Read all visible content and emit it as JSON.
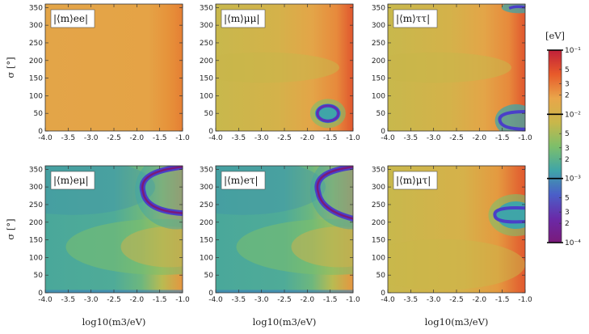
{
  "chart_data": {
    "type": "heatmap",
    "xlabel": "log10(m3/eV)",
    "ylabel": "σ [°]",
    "xlim": [
      -4.0,
      -1.0
    ],
    "ylim": [
      0,
      360
    ],
    "x_ticks": [
      "-4.0",
      "-3.5",
      "-3.0",
      "-2.5",
      "-2.0",
      "-1.5",
      "-1.0"
    ],
    "y_ticks": [
      "0",
      "50",
      "100",
      "150",
      "200",
      "250",
      "300",
      "350"
    ],
    "colorbar": {
      "label": "[eV]",
      "scale": "log",
      "range": [
        0.0001,
        0.1
      ],
      "major_ticks": [
        "10⁻¹",
        "10⁻²",
        "10⁻³",
        "10⁻⁴"
      ],
      "minor_ticks": [
        "5",
        "3",
        "2"
      ],
      "colors": [
        "#c0203a",
        "#e85a2a",
        "#e9a64a",
        "#c9b74a",
        "#7dbf6a",
        "#3fa5a8",
        "#4a5fc8",
        "#6a2aa8",
        "#7a1a7a"
      ]
    },
    "panels": [
      {
        "label": "|⟨m⟩ee|",
        "description_value_range_eV": [
          0.006,
          0.04
        ]
      },
      {
        "label": "|⟨m⟩μμ|",
        "description_value_range_eV": [
          0.0003,
          0.06
        ]
      },
      {
        "label": "|⟨m⟩ττ|",
        "description_value_range_eV": [
          0.0003,
          0.06
        ]
      },
      {
        "label": "|⟨m⟩eμ|",
        "description_value_range_eV": [
          0.0002,
          0.05
        ]
      },
      {
        "label": "|⟨m⟩eτ|",
        "description_value_range_eV": [
          0.0002,
          0.05
        ]
      },
      {
        "label": "|⟨m⟩μτ|",
        "description_value_range_eV": [
          0.0003,
          0.05
        ]
      }
    ]
  }
}
